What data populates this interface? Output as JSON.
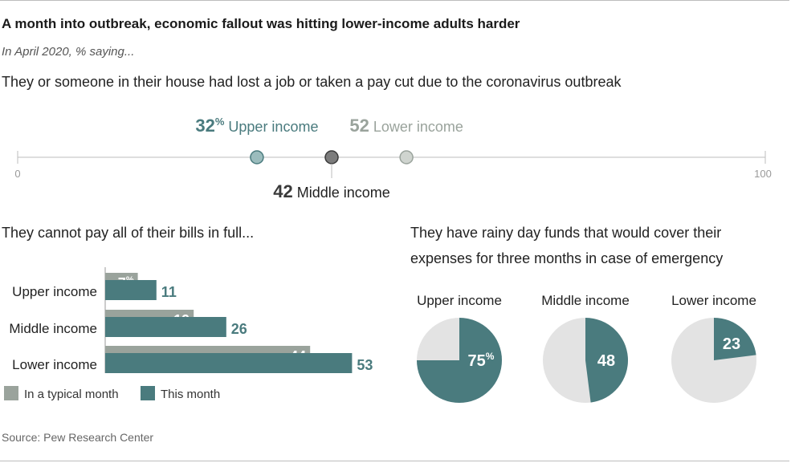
{
  "title": "A month into outbreak, economic fallout was hitting lower-income adults harder",
  "subtitle": "In April 2020, % saying...",
  "source": "Source: Pew Research Center",
  "colors": {
    "upper": "#4a7b7e",
    "middle": "#3a3a3a",
    "lower": "#9aa39c",
    "pie_bg": "#e3e3e3",
    "axis": "#9a9a9a"
  },
  "chart_data": [
    {
      "type": "scatter",
      "title": "They or someone in their house had lost a job or taken a pay cut due to the coronavirus outbreak",
      "xlim": [
        0,
        100
      ],
      "tick_labels": [
        "0",
        "100"
      ],
      "unit": "%",
      "points": [
        {
          "name": "Upper income",
          "value": 32
        },
        {
          "name": "Middle income",
          "value": 42
        },
        {
          "name": "Lower income",
          "value": 52
        }
      ]
    },
    {
      "type": "bar",
      "title": "They cannot pay all of their bills in full...",
      "categories": [
        "Upper income",
        "Middle income",
        "Lower income"
      ],
      "series": [
        {
          "name": "In a typical month",
          "values": [
            7,
            19,
            44
          ]
        },
        {
          "name": "This month",
          "values": [
            11,
            26,
            53
          ]
        }
      ],
      "unit": "%",
      "legend": "bottom"
    },
    {
      "type": "pie",
      "title": "They have rainy day funds that would cover their expenses for three months in case of emergency",
      "title_lines": [
        "They have rainy day funds that would cover their",
        "expenses for three months in case of emergency"
      ],
      "categories": [
        "Upper income",
        "Middle income",
        "Lower income"
      ],
      "values": [
        75,
        48,
        23
      ],
      "unit": "%"
    }
  ]
}
